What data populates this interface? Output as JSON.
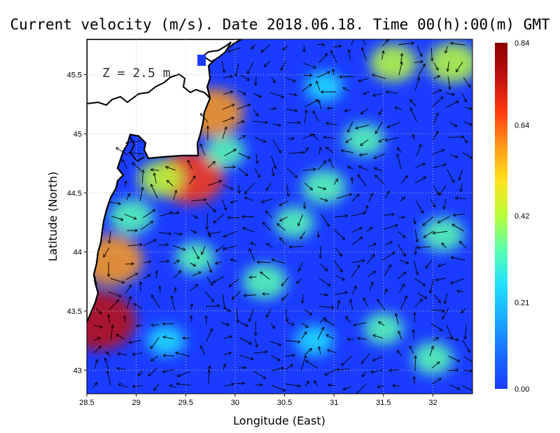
{
  "chart_data": {
    "type": "heatmap",
    "title": "Current velocity (m/s). Date 2018.06.18. Time 00(h):00(m) GMT",
    "xlabel": "Longitude (East)",
    "ylabel": "Latitude (North)",
    "annotation": "Z = 2.5 m",
    "xlim": [
      28.5,
      32.4
    ],
    "ylim": [
      42.8,
      45.8
    ],
    "x_ticks": [
      "28.5",
      "29",
      "29.5",
      "30",
      "30.5",
      "31",
      "31.5",
      "32"
    ],
    "x_tick_values": [
      28.5,
      29,
      29.5,
      30,
      30.5,
      31,
      31.5,
      32
    ],
    "y_ticks": [
      "43",
      "43.5",
      "44",
      "44.5",
      "45",
      "45.5"
    ],
    "y_tick_values": [
      43,
      43.5,
      44,
      44.5,
      45,
      45.5
    ],
    "grid": true,
    "colorbar": {
      "ticks": [
        "0.00",
        "0.21",
        "0.42",
        "0.64",
        "0.84"
      ],
      "tick_values": [
        0.0,
        0.21,
        0.42,
        0.64,
        0.84
      ],
      "range": [
        0.0,
        0.84
      ],
      "colors": [
        "#1a3cff",
        "#1a6cff",
        "#1aa9ff",
        "#1fe0ff",
        "#58ffb0",
        "#b8ff3c",
        "#ffe21a",
        "#ff9a1a",
        "#ff3a10",
        "#c01010",
        "#8a0000"
      ]
    },
    "colormap_note": "jet",
    "hotspots": [
      {
        "lon": 28.62,
        "lat": 43.42,
        "speed": 0.78
      },
      {
        "lon": 28.75,
        "lat": 43.93,
        "speed": 0.62
      },
      {
        "lon": 29.55,
        "lat": 44.63,
        "speed": 0.66
      },
      {
        "lon": 29.78,
        "lat": 45.18,
        "speed": 0.58
      },
      {
        "lon": 29.25,
        "lat": 44.62,
        "speed": 0.38
      },
      {
        "lon": 28.95,
        "lat": 44.3,
        "speed": 0.36
      },
      {
        "lon": 30.3,
        "lat": 43.75,
        "speed": 0.36
      },
      {
        "lon": 30.6,
        "lat": 44.25,
        "speed": 0.3
      },
      {
        "lon": 30.9,
        "lat": 44.55,
        "speed": 0.36
      },
      {
        "lon": 31.6,
        "lat": 45.6,
        "speed": 0.4
      },
      {
        "lon": 32.2,
        "lat": 45.6,
        "speed": 0.45
      },
      {
        "lon": 32.1,
        "lat": 44.15,
        "speed": 0.34
      },
      {
        "lon": 31.5,
        "lat": 43.35,
        "speed": 0.3
      },
      {
        "lon": 32.0,
        "lat": 43.1,
        "speed": 0.32
      },
      {
        "lon": 30.8,
        "lat": 43.25,
        "speed": 0.28
      },
      {
        "lon": 29.3,
        "lat": 43.25,
        "speed": 0.28
      },
      {
        "lon": 29.9,
        "lat": 44.85,
        "speed": 0.3
      },
      {
        "lon": 30.9,
        "lat": 45.4,
        "speed": 0.28
      },
      {
        "lon": 31.3,
        "lat": 44.95,
        "speed": 0.32
      },
      {
        "lon": 29.6,
        "lat": 43.95,
        "speed": 0.3
      }
    ],
    "background_speed": 0.05
  }
}
